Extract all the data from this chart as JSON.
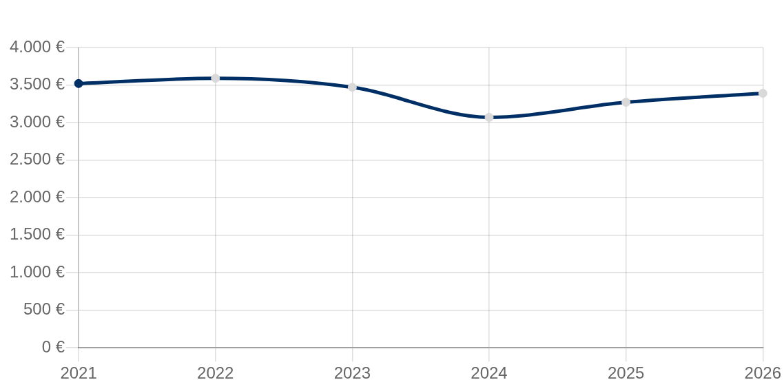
{
  "chart_data": {
    "type": "line",
    "categories": [
      "2021",
      "2022",
      "2023",
      "2024",
      "2025",
      "2026"
    ],
    "series": [
      {
        "color": "#002f66",
        "values": [
          3520,
          3590,
          3470,
          3070,
          3270,
          3390
        ],
        "colors": [
          "#002f66",
          "#d9d9d9",
          "#d9d9d9",
          "#d9d9d9",
          "#d9d9d9",
          "#d9d9d9"
        ]
      }
    ],
    "ylim": [
      0,
      4000
    ],
    "yticks": [
      {
        "value": 0,
        "label": "0 €"
      },
      {
        "value": 500,
        "label": "500 €"
      },
      {
        "value": 1000,
        "label": "1.000 €"
      },
      {
        "value": 1500,
        "label": "1.500 €"
      },
      {
        "value": 2000,
        "label": "2.000 €"
      },
      {
        "value": 2500,
        "label": "2.500 €"
      },
      {
        "value": 3000,
        "label": "3.000 €"
      },
      {
        "value": 3500,
        "label": "3.500 €"
      },
      {
        "value": 4000,
        "label": "4.000 €"
      }
    ],
    "grid": true,
    "marker": "circle",
    "line_style": "solid"
  }
}
